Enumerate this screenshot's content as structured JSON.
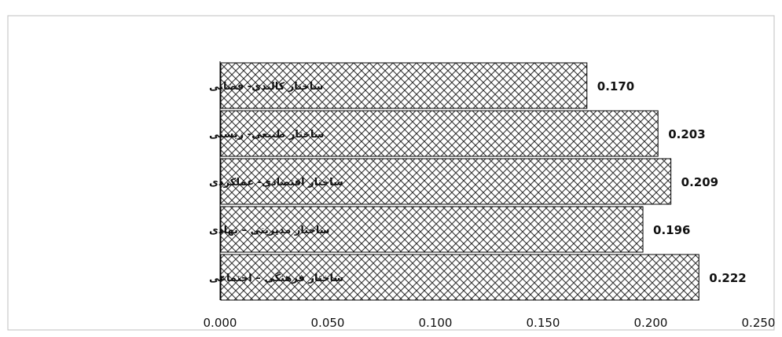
{
  "chart_data": {
    "type": "bar",
    "orientation": "horizontal",
    "categories": [
      "ساختار کالبدی- فضایی",
      "ساختار طبیعی- زیستی",
      "ساختار اقتصادی- عملکردی",
      "ساختار مدیریتی – نهادی",
      "ساختار فرهنگی – اجتماعی"
    ],
    "values": [
      0.17,
      0.203,
      0.209,
      0.196,
      0.222
    ],
    "value_labels": [
      "0.170",
      "0.203",
      "0.209",
      "0.196",
      "0.222"
    ],
    "x_ticks": [
      "0.000",
      "0.050",
      "0.100",
      "0.150",
      "0.200",
      "0.250"
    ],
    "xlim": [
      0,
      0.25
    ],
    "title": "",
    "xlabel": "",
    "ylabel": "",
    "grid": false,
    "legend": "none",
    "bar_fill": "crosshatch pattern",
    "colors": {
      "bar_stroke": "#000000",
      "hatch": "#333333",
      "axis": "#000000",
      "background": "#ffffff"
    }
  }
}
